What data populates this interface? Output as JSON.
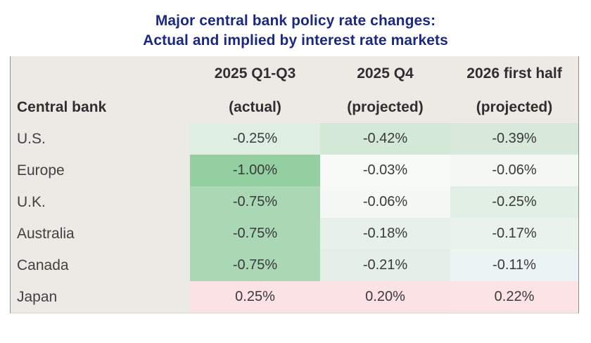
{
  "title": {
    "line1": "Major central bank policy rate changes:",
    "line2": "Actual and implied by interest rate markets"
  },
  "colors": {
    "title": "#1b2a80",
    "header_bg": "#eceae5",
    "border": "#8f8f8f",
    "text": "#3a3a3a",
    "negative_scale_strong": "#93cfa1",
    "positive_scale": "#fae2e5"
  },
  "table": {
    "label_header": "Central bank",
    "columns": [
      {
        "line1": "2025 Q1-Q3",
        "line2": "(actual)"
      },
      {
        "line1": "2025 Q4",
        "line2": "(projected)"
      },
      {
        "line1": "2026 first half",
        "line2": "(projected)"
      }
    ],
    "rows": [
      {
        "label": "U.S.",
        "cells": [
          {
            "value": "-0.25%",
            "bg": "#dfeee3"
          },
          {
            "value": "-0.42%",
            "bg": "#d4e8d8"
          },
          {
            "value": "-0.39%",
            "bg": "#d6e9da"
          }
        ]
      },
      {
        "label": "Europe",
        "cells": [
          {
            "value": "-1.00%",
            "bg": "#93cfa1"
          },
          {
            "value": "-0.03%",
            "bg": "#f8faf8"
          },
          {
            "value": "-0.06%",
            "bg": "#f4f7f4"
          }
        ]
      },
      {
        "label": "U.K.",
        "cells": [
          {
            "value": "-0.75%",
            "bg": "#aad8b4"
          },
          {
            "value": "-0.06%",
            "bg": "#f6f8f6"
          },
          {
            "value": "-0.25%",
            "bg": "#e1efe4"
          }
        ]
      },
      {
        "label": "Australia",
        "cells": [
          {
            "value": "-0.75%",
            "bg": "#aad8b4"
          },
          {
            "value": "-0.18%",
            "bg": "#e7f1e9"
          },
          {
            "value": "-0.17%",
            "bg": "#e9f3ec"
          }
        ]
      },
      {
        "label": "Canada",
        "cells": [
          {
            "value": "-0.75%",
            "bg": "#aad8b4"
          },
          {
            "value": "-0.21%",
            "bg": "#e4f0e7"
          },
          {
            "value": "-0.11%",
            "bg": "#ebf4f2"
          }
        ]
      },
      {
        "label": "Japan",
        "cells": [
          {
            "value": "0.25%",
            "bg": "#fae2e5"
          },
          {
            "value": "0.20%",
            "bg": "#fae2e5"
          },
          {
            "value": "0.22%",
            "bg": "#fbe3e6"
          }
        ]
      }
    ]
  },
  "chart_data": {
    "type": "heatmap",
    "title": "Major central bank policy rate changes: Actual and implied by interest rate markets",
    "row_label_header": "Central bank",
    "columns": [
      "2025 Q1-Q3 (actual)",
      "2025 Q4 (projected)",
      "2026 first half (projected)"
    ],
    "rows": [
      "U.S.",
      "Europe",
      "U.K.",
      "Australia",
      "Canada",
      "Japan"
    ],
    "values_pct": [
      [
        -0.25,
        -0.42,
        -0.39
      ],
      [
        -1.0,
        -0.03,
        -0.06
      ],
      [
        -0.75,
        -0.06,
        -0.25
      ],
      [
        -0.75,
        -0.18,
        -0.17
      ],
      [
        -0.75,
        -0.21,
        -0.11
      ],
      [
        0.25,
        0.2,
        0.22
      ]
    ],
    "color_scale": "green for negative (darker = larger cut), pink for positive (hikes)",
    "legend_position": "none",
    "grid": false
  }
}
